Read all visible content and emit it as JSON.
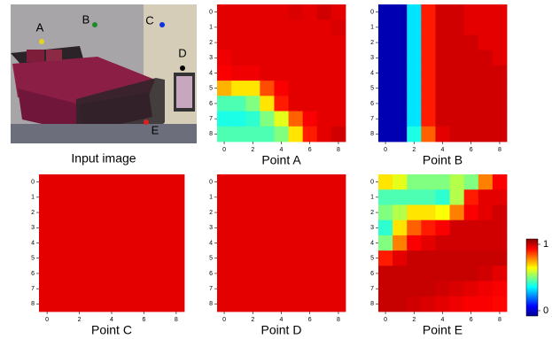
{
  "image": {
    "caption": "Input image",
    "points": [
      {
        "label": "A",
        "color": "#e6d21e"
      },
      {
        "label": "B",
        "color": "#1f8a2a"
      },
      {
        "label": "C",
        "color": "#1030e0"
      },
      {
        "label": "D",
        "color": "#000000"
      },
      {
        "label": "E",
        "color": "#e02020"
      }
    ]
  },
  "chart_data": [
    {
      "type": "heatmap",
      "title": "Point A",
      "xticks": [
        0,
        2,
        4,
        6,
        8
      ],
      "yticks": [
        0,
        1,
        2,
        3,
        4,
        5,
        6,
        7,
        8
      ],
      "zlim": [
        0,
        1
      ],
      "values": [
        [
          0.9,
          0.9,
          0.9,
          0.9,
          0.9,
          0.91,
          0.9,
          0.92,
          0.9
        ],
        [
          0.9,
          0.9,
          0.9,
          0.9,
          0.9,
          0.9,
          0.9,
          0.9,
          0.91
        ],
        [
          0.9,
          0.9,
          0.9,
          0.9,
          0.9,
          0.9,
          0.9,
          0.9,
          0.9
        ],
        [
          0.89,
          0.9,
          0.9,
          0.9,
          0.9,
          0.9,
          0.9,
          0.9,
          0.9
        ],
        [
          0.88,
          0.89,
          0.89,
          0.9,
          0.9,
          0.9,
          0.9,
          0.9,
          0.9
        ],
        [
          0.7,
          0.65,
          0.65,
          0.8,
          0.88,
          0.9,
          0.9,
          0.9,
          0.9
        ],
        [
          0.45,
          0.45,
          0.5,
          0.65,
          0.85,
          0.9,
          0.9,
          0.9,
          0.9
        ],
        [
          0.4,
          0.4,
          0.42,
          0.5,
          0.6,
          0.78,
          0.88,
          0.9,
          0.9
        ],
        [
          0.45,
          0.45,
          0.45,
          0.45,
          0.5,
          0.65,
          0.85,
          0.9,
          0.92
        ]
      ]
    },
    {
      "type": "heatmap",
      "title": "Point B",
      "xticks": [
        0,
        2,
        4,
        6,
        8
      ],
      "yticks": [
        0,
        1,
        2,
        3,
        4,
        5,
        6,
        7,
        8
      ],
      "zlim": [
        0,
        1
      ],
      "values": [
        [
          0.05,
          0.05,
          0.35,
          0.85,
          0.92,
          0.92,
          0.9,
          0.9,
          0.9
        ],
        [
          0.05,
          0.05,
          0.35,
          0.85,
          0.92,
          0.92,
          0.9,
          0.9,
          0.9
        ],
        [
          0.05,
          0.05,
          0.35,
          0.85,
          0.92,
          0.92,
          0.92,
          0.9,
          0.9
        ],
        [
          0.05,
          0.05,
          0.35,
          0.85,
          0.92,
          0.92,
          0.92,
          0.92,
          0.9
        ],
        [
          0.05,
          0.05,
          0.35,
          0.85,
          0.92,
          0.92,
          0.92,
          0.92,
          0.92
        ],
        [
          0.05,
          0.05,
          0.35,
          0.85,
          0.92,
          0.92,
          0.92,
          0.92,
          0.92
        ],
        [
          0.05,
          0.05,
          0.35,
          0.85,
          0.92,
          0.92,
          0.92,
          0.92,
          0.92
        ],
        [
          0.05,
          0.05,
          0.35,
          0.85,
          0.92,
          0.92,
          0.92,
          0.92,
          0.92
        ],
        [
          0.05,
          0.05,
          0.4,
          0.78,
          0.9,
          0.92,
          0.92,
          0.92,
          0.92
        ]
      ]
    },
    {
      "type": "heatmap",
      "title": "Point C",
      "xticks": [
        0,
        2,
        4,
        6,
        8
      ],
      "yticks": [
        0,
        1,
        2,
        3,
        4,
        5,
        6,
        7,
        8
      ],
      "zlim": [
        0,
        1
      ],
      "values": [
        [
          0.9,
          0.9,
          0.9,
          0.9,
          0.9,
          0.9,
          0.9,
          0.9,
          0.9
        ],
        [
          0.9,
          0.9,
          0.9,
          0.9,
          0.9,
          0.9,
          0.9,
          0.9,
          0.9
        ],
        [
          0.9,
          0.9,
          0.9,
          0.9,
          0.9,
          0.9,
          0.9,
          0.9,
          0.9
        ],
        [
          0.9,
          0.9,
          0.9,
          0.9,
          0.9,
          0.9,
          0.9,
          0.9,
          0.9
        ],
        [
          0.9,
          0.9,
          0.9,
          0.9,
          0.9,
          0.9,
          0.9,
          0.9,
          0.9
        ],
        [
          0.9,
          0.9,
          0.9,
          0.9,
          0.9,
          0.9,
          0.9,
          0.9,
          0.9
        ],
        [
          0.9,
          0.9,
          0.9,
          0.9,
          0.9,
          0.9,
          0.9,
          0.9,
          0.9
        ],
        [
          0.9,
          0.9,
          0.9,
          0.9,
          0.9,
          0.9,
          0.9,
          0.9,
          0.9
        ],
        [
          0.9,
          0.9,
          0.9,
          0.9,
          0.9,
          0.9,
          0.9,
          0.9,
          0.9
        ]
      ]
    },
    {
      "type": "heatmap",
      "title": "Point D",
      "xticks": [
        0,
        2,
        4,
        6,
        8
      ],
      "yticks": [
        0,
        1,
        2,
        3,
        4,
        5,
        6,
        7,
        8
      ],
      "zlim": [
        0,
        1
      ],
      "values": [
        [
          0.9,
          0.9,
          0.9,
          0.9,
          0.9,
          0.9,
          0.9,
          0.9,
          0.9
        ],
        [
          0.9,
          0.9,
          0.9,
          0.9,
          0.9,
          0.9,
          0.9,
          0.9,
          0.9
        ],
        [
          0.9,
          0.9,
          0.9,
          0.9,
          0.9,
          0.9,
          0.9,
          0.9,
          0.9
        ],
        [
          0.9,
          0.9,
          0.9,
          0.9,
          0.9,
          0.9,
          0.9,
          0.9,
          0.9
        ],
        [
          0.9,
          0.9,
          0.9,
          0.9,
          0.9,
          0.9,
          0.9,
          0.9,
          0.9
        ],
        [
          0.9,
          0.9,
          0.9,
          0.9,
          0.9,
          0.9,
          0.9,
          0.9,
          0.9
        ],
        [
          0.9,
          0.9,
          0.9,
          0.9,
          0.9,
          0.9,
          0.9,
          0.9,
          0.9
        ],
        [
          0.9,
          0.9,
          0.9,
          0.9,
          0.9,
          0.9,
          0.9,
          0.9,
          0.9
        ],
        [
          0.9,
          0.9,
          0.9,
          0.9,
          0.9,
          0.9,
          0.9,
          0.9,
          0.9
        ]
      ]
    },
    {
      "type": "heatmap",
      "title": "Point E",
      "xticks": [
        0,
        2,
        4,
        6,
        8
      ],
      "yticks": [
        0,
        1,
        2,
        3,
        4,
        5,
        6,
        7,
        8
      ],
      "zlim": [
        0,
        1
      ],
      "colorbar_ticks": [
        0,
        1
      ],
      "values": [
        [
          0.65,
          0.6,
          0.5,
          0.5,
          0.5,
          0.55,
          0.5,
          0.75,
          0.88
        ],
        [
          0.45,
          0.45,
          0.45,
          0.45,
          0.42,
          0.55,
          0.85,
          0.9,
          0.9
        ],
        [
          0.5,
          0.55,
          0.65,
          0.65,
          0.62,
          0.75,
          0.88,
          0.9,
          0.92
        ],
        [
          0.42,
          0.65,
          0.78,
          0.85,
          0.88,
          0.92,
          0.92,
          0.92,
          0.92
        ],
        [
          0.5,
          0.75,
          0.88,
          0.9,
          0.92,
          0.92,
          0.92,
          0.92,
          0.92
        ],
        [
          0.85,
          0.9,
          0.93,
          0.93,
          0.93,
          0.93,
          0.93,
          0.93,
          0.93
        ],
        [
          0.93,
          0.93,
          0.93,
          0.93,
          0.93,
          0.93,
          0.93,
          0.92,
          0.9
        ],
        [
          0.93,
          0.93,
          0.93,
          0.93,
          0.92,
          0.91,
          0.9,
          0.89,
          0.88
        ],
        [
          0.93,
          0.93,
          0.92,
          0.91,
          0.9,
          0.89,
          0.88,
          0.88,
          0.87
        ]
      ]
    }
  ]
}
